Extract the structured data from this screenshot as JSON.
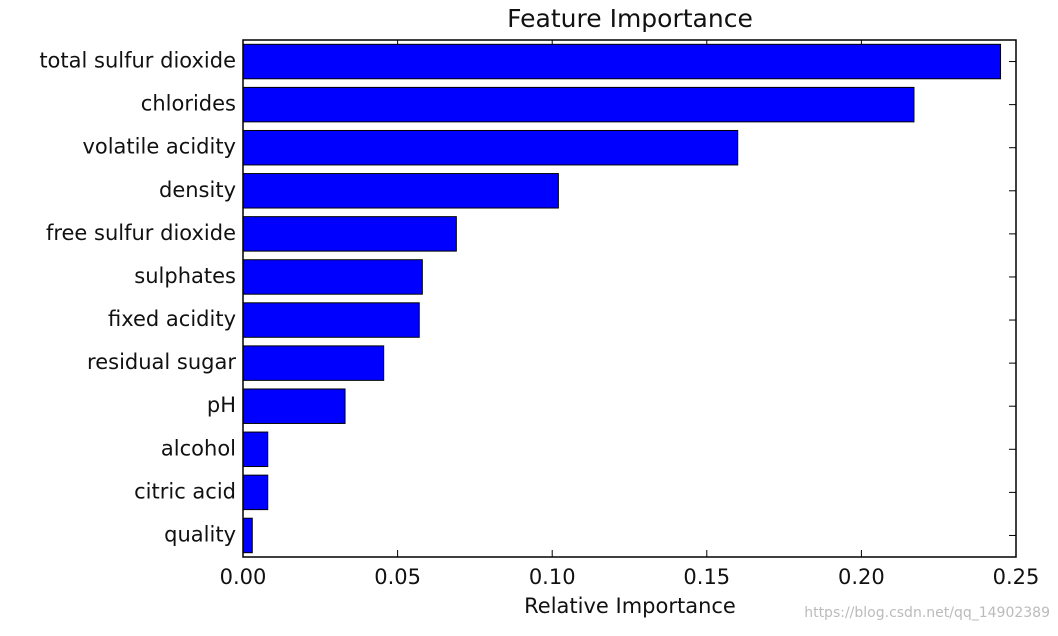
{
  "chart_data": {
    "type": "barh",
    "title": "Feature Importance",
    "xlabel": "Relative Importance",
    "categories": [
      "total sulfur dioxide",
      "chlorides",
      "volatile acidity",
      "density",
      "free sulfur dioxide",
      "sulphates",
      "fixed acidity",
      "residual sugar",
      "pH",
      "alcohol",
      "citric acid",
      "quality"
    ],
    "values": [
      0.245,
      0.217,
      0.16,
      0.102,
      0.069,
      0.058,
      0.057,
      0.0455,
      0.033,
      0.008,
      0.008,
      0.003
    ],
    "color": "#0000ff",
    "xlim": [
      0,
      0.25
    ],
    "xticks": [
      {
        "value": 0,
        "label": "0.00"
      },
      {
        "value": 0.05,
        "label": "0.05"
      },
      {
        "value": 0.1,
        "label": "0.10"
      },
      {
        "value": 0.15,
        "label": "0.15"
      },
      {
        "value": 0.2,
        "label": "0.20"
      },
      {
        "value": 0.25,
        "label": "0.25"
      }
    ],
    "watermark": "https://blog.csdn.net/qq_14902389"
  }
}
